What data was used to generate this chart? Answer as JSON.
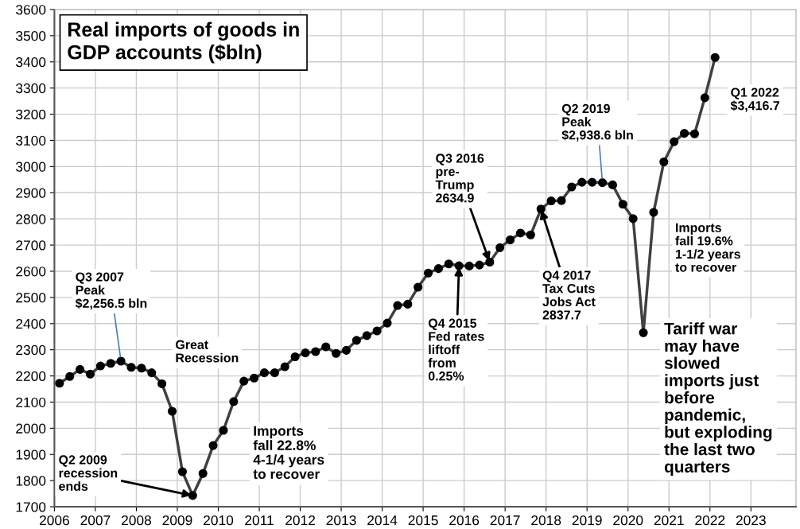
{
  "chart_data": {
    "type": "line",
    "title": "Real imports of goods in\nGDP accounts ($bln)",
    "x": [
      2006.125,
      2006.375,
      2006.625,
      2006.875,
      2007.125,
      2007.375,
      2007.625,
      2007.875,
      2008.125,
      2008.375,
      2008.625,
      2008.875,
      2009.125,
      2009.375,
      2009.625,
      2009.875,
      2010.125,
      2010.375,
      2010.625,
      2010.875,
      2011.125,
      2011.375,
      2011.625,
      2011.875,
      2012.125,
      2012.375,
      2012.625,
      2012.875,
      2013.125,
      2013.375,
      2013.625,
      2013.875,
      2014.125,
      2014.375,
      2014.625,
      2014.875,
      2015.125,
      2015.375,
      2015.625,
      2015.875,
      2016.125,
      2016.375,
      2016.625,
      2016.875,
      2017.125,
      2017.375,
      2017.625,
      2017.875,
      2018.125,
      2018.375,
      2018.625,
      2018.875,
      2019.125,
      2019.375,
      2019.625,
      2019.875,
      2020.125,
      2020.375,
      2020.625,
      2020.875,
      2021.125,
      2021.375,
      2021.625,
      2021.875,
      2022.125
    ],
    "series": [
      {
        "color": "#404040",
        "values": [
          2172,
          2198,
          2225,
          2207,
          2238,
          2248,
          2256.5,
          2233,
          2230,
          2212,
          2170,
          2065,
          1834,
          1743,
          1827,
          1934,
          1992,
          2102,
          2180,
          2192,
          2212,
          2212,
          2235,
          2273,
          2288,
          2293,
          2311,
          2286,
          2298,
          2336,
          2354,
          2372,
          2402,
          2469,
          2474,
          2539,
          2593,
          2610,
          2628,
          2621,
          2620,
          2624,
          2634.9,
          2690,
          2720,
          2746,
          2739,
          2837.7,
          2869,
          2870,
          2922,
          2940,
          2940,
          2938.6,
          2930,
          2856,
          2801,
          2365,
          2825,
          3018,
          3095,
          3127,
          3125,
          3263,
          3416.7
        ]
      }
    ],
    "xlim": [
      2006,
      2024.1
    ],
    "xticks": [
      2006,
      2007,
      2008,
      2009,
      2010,
      2011,
      2012,
      2013,
      2014,
      2015,
      2016,
      2017,
      2018,
      2019,
      2020,
      2021,
      2022,
      2023
    ],
    "ylim": [
      1700,
      3600
    ],
    "yticks": [
      1700,
      1800,
      1900,
      2000,
      2100,
      2200,
      2300,
      2400,
      2500,
      2600,
      2700,
      2800,
      2900,
      3000,
      3100,
      3200,
      3300,
      3400,
      3500,
      3600
    ],
    "grid": true,
    "marker": "circle",
    "line_style": "solid",
    "annotations": [
      {
        "text": "Q3 2007\nPeak\n$2,256.5 bln",
        "x": 2007.625,
        "y": 2256.5
      },
      "Great\nRecession",
      {
        "text": "Q2 2009\nrecession\nends",
        "x": 2009.375,
        "y": 1743
      },
      "Imports\nfall 22.8%\n4-1/4 years\nto recover",
      {
        "text": "Q4 2015\nFed rates\nliftoff\nfrom\n0.25%",
        "x": 2015.875,
        "y": 2621
      },
      {
        "text": "Q3 2016\npre-\nTrump\n2634.9",
        "x": 2016.625,
        "y": 2634.9
      },
      {
        "text": "Q4 2017\nTax Cuts\nJobs Act\n2837.7",
        "x": 2017.875,
        "y": 2837.7
      },
      {
        "text": "Q2 2019\nPeak\n$2,938.6 bln",
        "x": 2019.375,
        "y": 2938.6
      },
      {
        "text": "Q1 2022\n$3,416.7",
        "x": 2022.125,
        "y": 3416.7
      },
      "Imports\nfall 19.6%\n1-1/2 years\nto recover",
      "Tariff war\nmay have\nslowed\nimports just\nbefore\npandemic,\nbut exploding\nthe last two\nquarters"
    ]
  }
}
